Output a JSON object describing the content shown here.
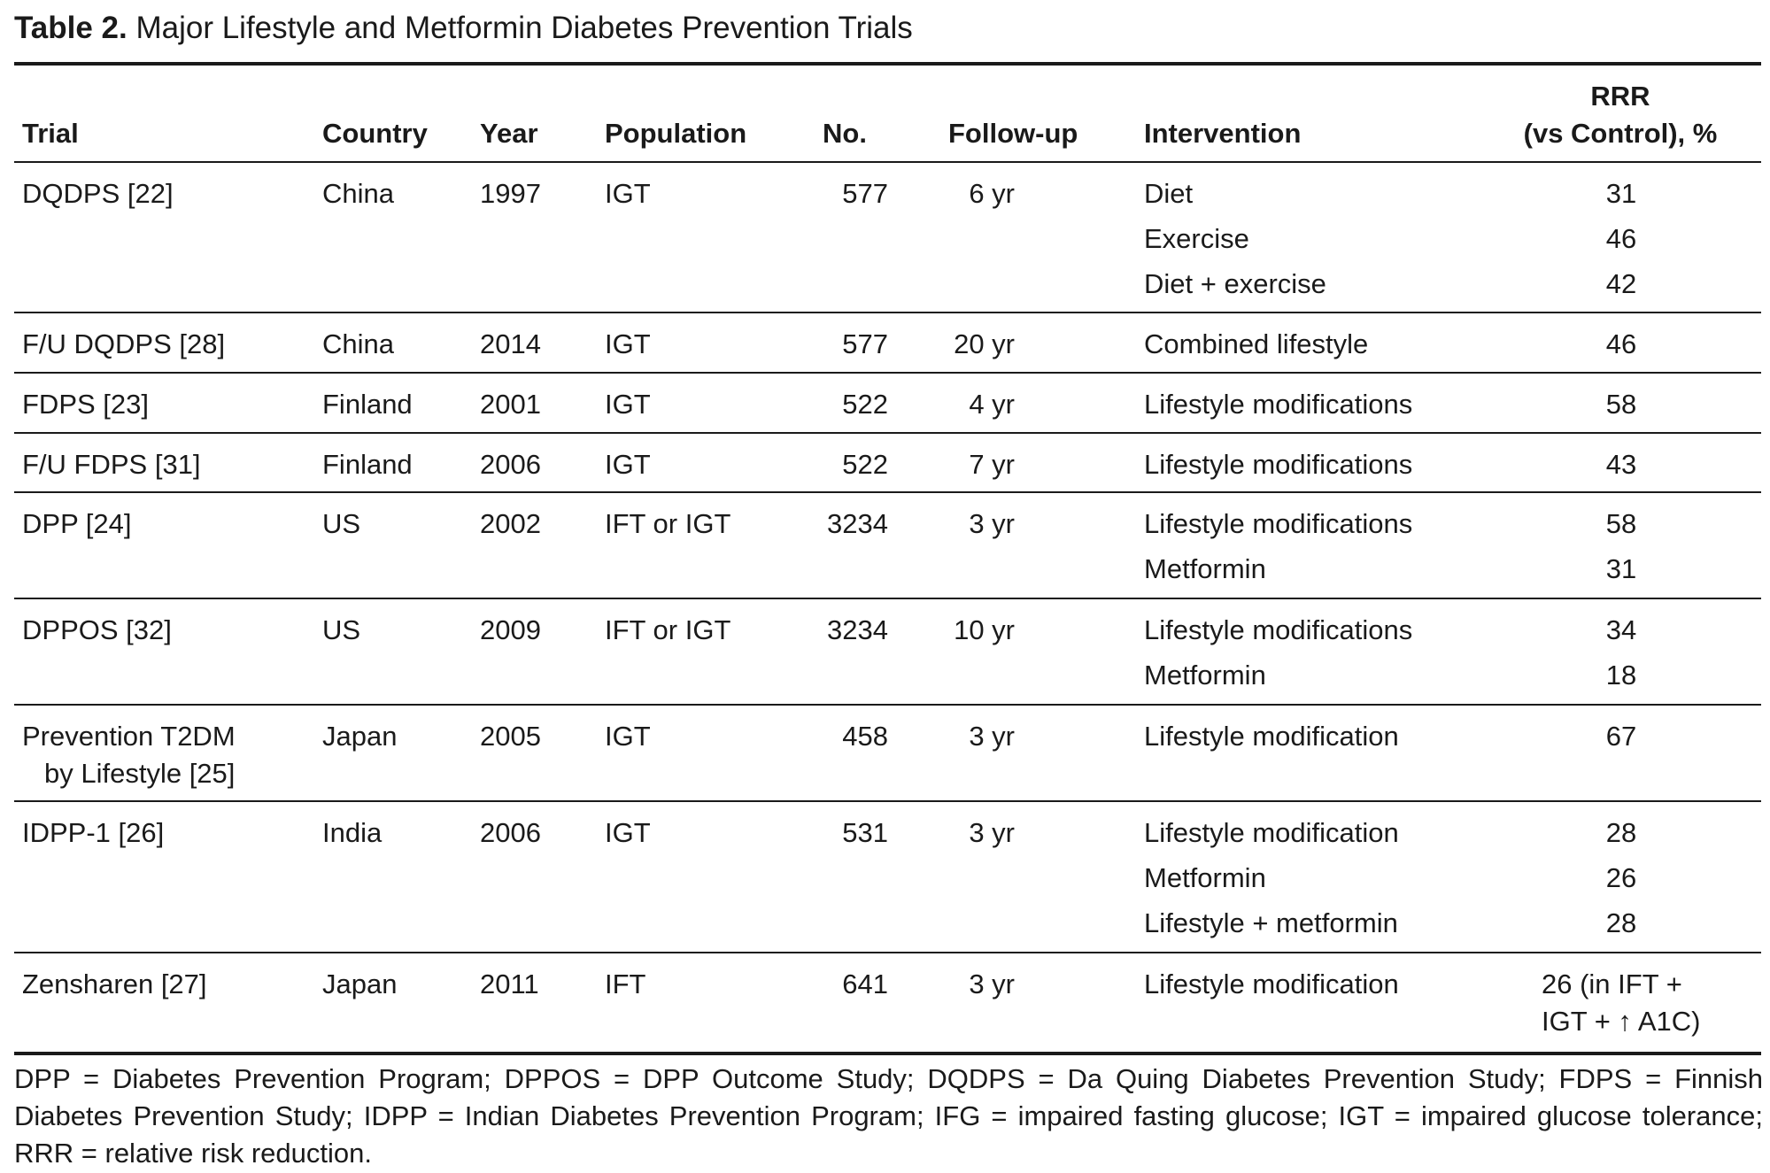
{
  "table": {
    "title_bold": "Table 2.",
    "title_rest": "Major Lifestyle and Metformin Diabetes Prevention Trials",
    "headers": {
      "trial": "Trial",
      "country": "Country",
      "year": "Year",
      "population": "Population",
      "no": "No.",
      "followup": "Follow-up",
      "intervention": "Intervention",
      "rrr_line1": "RRR",
      "rrr_line2": "(vs Control), %"
    },
    "rows": [
      {
        "trial": "DQDPS [22]",
        "country": "China",
        "year": "1997",
        "population": "IGT",
        "no": "577",
        "followup": "6 yr",
        "interventions": [
          {
            "name": "Diet",
            "rrr": "31"
          },
          {
            "name": "Exercise",
            "rrr": "46"
          },
          {
            "name": "Diet + exercise",
            "rrr": "42"
          }
        ]
      },
      {
        "trial": "F/U DQDPS [28]",
        "country": "China",
        "year": "2014",
        "population": "IGT",
        "no": "577",
        "followup": "20 yr",
        "interventions": [
          {
            "name": "Combined lifestyle",
            "rrr": "46"
          }
        ]
      },
      {
        "trial": "FDPS [23]",
        "country": "Finland",
        "year": "2001",
        "population": "IGT",
        "no": "522",
        "followup": "4 yr",
        "interventions": [
          {
            "name": "Lifestyle modifications",
            "rrr": "58"
          }
        ]
      },
      {
        "trial": "F/U FDPS [31]",
        "country": "Finland",
        "year": "2006",
        "population": "IGT",
        "no": "522",
        "followup": "7 yr",
        "interventions": [
          {
            "name": "Lifestyle modifications",
            "rrr": "43"
          }
        ]
      },
      {
        "trial": "DPP [24]",
        "country": "US",
        "year": "2002",
        "population": "IFT or IGT",
        "no": "3234",
        "followup": "3 yr",
        "interventions": [
          {
            "name": "Lifestyle modifications",
            "rrr": "58"
          },
          {
            "name": "Metformin",
            "rrr": "31"
          }
        ]
      },
      {
        "trial": "DPPOS [32]",
        "country": "US",
        "year": "2009",
        "population": "IFT or IGT",
        "no": "3234",
        "followup": "10 yr",
        "interventions": [
          {
            "name": "Lifestyle modifications",
            "rrr": "34"
          },
          {
            "name": "Metformin",
            "rrr": "18"
          }
        ]
      },
      {
        "trial": "Prevention T2DM",
        "trial_line2": "by Lifestyle [25]",
        "country": "Japan",
        "year": "2005",
        "population": "IGT",
        "no": "458",
        "followup": "3 yr",
        "interventions": [
          {
            "name": "Lifestyle modification",
            "rrr": "67"
          }
        ]
      },
      {
        "trial": "IDPP-1 [26]",
        "country": "India",
        "year": "2006",
        "population": "IGT",
        "no": "531",
        "followup": "3 yr",
        "interventions": [
          {
            "name": "Lifestyle modification",
            "rrr": "28"
          },
          {
            "name": "Metformin",
            "rrr": "26"
          },
          {
            "name": "Lifestyle + metformin",
            "rrr": "28"
          }
        ]
      },
      {
        "trial": "Zensharen [27]",
        "country": "Japan",
        "year": "2011",
        "population": "IFT",
        "no": "641",
        "followup": "3 yr",
        "interventions": [
          {
            "name": "Lifestyle modification",
            "rrr": "26 (in IFT +",
            "rrr_line2": "IGT + ↑ A1C)"
          }
        ]
      }
    ],
    "footnote": "DPP = Diabetes Prevention Program; DPPOS = DPP Outcome Study; DQDPS = Da Quing Diabetes Prevention Study; FDPS = Finnish Diabetes Prevention Study; IDPP = Indian Diabetes Prevention Program; IFG = impaired fasting glucose; IGT = impaired glucose tolerance; RRR = relative risk reduction."
  }
}
